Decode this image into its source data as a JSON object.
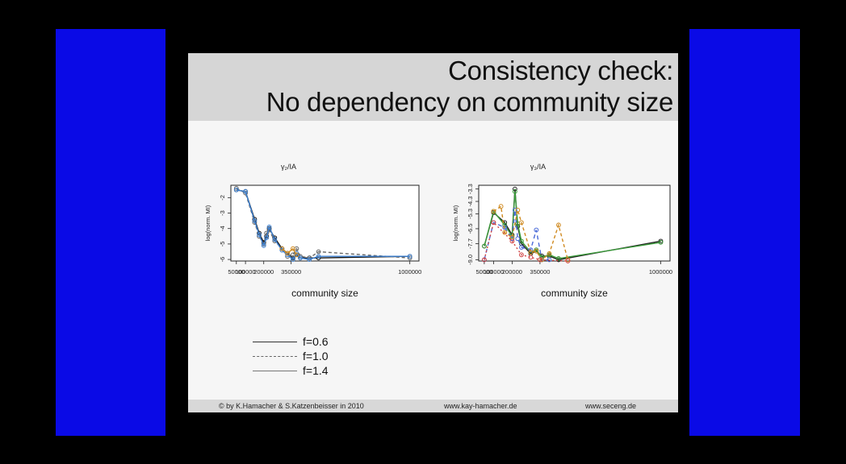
{
  "slide": {
    "title_line1": "Consistency check:",
    "title_line2": "No dependency on community size",
    "footer_left": "© by K.Hamacher & S.Katzenbeisser in 2010",
    "footer_mid": "www.kay-hamacher.de",
    "footer_right": "www.seceng.de"
  },
  "colors": {
    "frame_blue": "#0a0ae6",
    "background": "#000000",
    "slide": "#f6f6f6",
    "title_band": "#d6d6d6"
  },
  "legend": [
    {
      "label": "f=0.6",
      "style": "solid"
    },
    {
      "label": "f=1.0",
      "style": "dashed"
    },
    {
      "label": "f=1.4",
      "style": "solid"
    }
  ],
  "chart_data": [
    {
      "type": "line",
      "title": "γ₂/IA",
      "xlabel": "community size",
      "ylabel": "log(norm. MI)",
      "xlim": [
        20000,
        1050000
      ],
      "ylim": [
        -6.1,
        -1.2
      ],
      "xticks": [
        50000,
        100000,
        200000,
        350000,
        1000000
      ],
      "xtick_labels": [
        "50000",
        "100000",
        "200000",
        "350000",
        "1000000"
      ],
      "yticks": [
        -2,
        -3,
        -4,
        -5,
        -6
      ],
      "ytick_labels": [
        "-2",
        "-3",
        "-4",
        "-5",
        "-6"
      ],
      "series": [
        {
          "color": "#111111",
          "dash": "",
          "x": [
            50000,
            100000,
            150000,
            175000,
            200000,
            215000,
            230000,
            260000,
            300000,
            330000,
            360000,
            380000,
            400000,
            450000,
            500000,
            1000000
          ],
          "y": [
            -1.5,
            -1.6,
            -3.4,
            -4.3,
            -4.9,
            -4.5,
            -4.0,
            -4.6,
            -5.3,
            -5.6,
            -5.9,
            -5.7,
            -5.9,
            -5.9,
            -5.9,
            -5.8
          ]
        },
        {
          "color": "#666666",
          "dash": "4,3",
          "x": [
            50000,
            100000,
            150000,
            175000,
            200000,
            215000,
            230000,
            260000,
            300000,
            330000,
            360000,
            380000,
            400000,
            450000,
            500000,
            1000000
          ],
          "y": [
            -1.4,
            -1.7,
            -3.6,
            -4.5,
            -5.0,
            -4.3,
            -4.1,
            -4.8,
            -5.3,
            -5.8,
            -5.7,
            -5.3,
            -5.8,
            -5.9,
            -5.5,
            -5.9
          ]
        },
        {
          "color": "#3b7fd0",
          "dash": "",
          "x": [
            50000,
            100000,
            150000,
            175000,
            200000,
            215000,
            230000,
            260000,
            300000,
            330000,
            360000,
            380000,
            400000,
            450000,
            500000,
            1000000
          ],
          "y": [
            -1.5,
            -1.6,
            -3.5,
            -4.4,
            -5.1,
            -4.6,
            -3.9,
            -4.7,
            -5.4,
            -5.7,
            -6.0,
            -5.6,
            -5.9,
            -6.0,
            -5.8,
            -5.8
          ]
        },
        {
          "color": "#d08a20",
          "dash": "",
          "x": [
            300000,
            330000,
            360000,
            380000
          ],
          "y": [
            -5.3,
            -5.6,
            -5.3,
            -5.7
          ]
        }
      ]
    },
    {
      "type": "line",
      "title": "γ₃/IA",
      "xlabel": "community size",
      "ylabel": "log(norm. MI)",
      "xlim": [
        20000,
        1050000
      ],
      "ylim": [
        -9.1,
        -3.0
      ],
      "xticks": [
        50000,
        100000,
        200000,
        350000,
        1000000
      ],
      "xtick_labels": [
        "50000",
        "100000",
        "200000",
        "350000",
        "1000000"
      ],
      "yticks": [
        -9,
        -7.7,
        -6.5,
        -5.3,
        -4.3,
        -3.3
      ],
      "ytick_labels": [
        "-9.0",
        "-7.7",
        "-6.5",
        "-5.3",
        "-4.3",
        "-3.3"
      ],
      "series": [
        {
          "color": "#222222",
          "dash": "",
          "x": [
            50000,
            100000,
            160000,
            200000,
            215000,
            230000,
            250000,
            300000,
            330000,
            360000,
            400000,
            450000,
            1000000
          ],
          "y": [
            -7.9,
            -5.2,
            -6.0,
            -7.0,
            -3.3,
            -6.3,
            -7.7,
            -8.5,
            -8.3,
            -8.7,
            -8.7,
            -9.0,
            -7.5
          ]
        },
        {
          "color": "#3a9a3a",
          "dash": "",
          "x": [
            50000,
            100000,
            160000,
            200000,
            215000,
            230000,
            250000,
            300000,
            330000,
            360000,
            400000,
            450000,
            1000000
          ],
          "y": [
            -7.9,
            -5.1,
            -6.2,
            -7.1,
            -3.5,
            -6.1,
            -7.5,
            -8.4,
            -8.2,
            -8.8,
            -8.6,
            -8.9,
            -7.6
          ]
        },
        {
          "color": "#4a6ad8",
          "dash": "5,4",
          "x": [
            50000,
            100000,
            160000,
            200000,
            215000,
            230000,
            250000,
            300000,
            330000,
            360000,
            400000
          ],
          "y": [
            -9.0,
            -6.0,
            -6.4,
            -7.3,
            -5.0,
            -7.3,
            -8.0,
            -8.2,
            -6.6,
            -9.0,
            -9.0
          ]
        },
        {
          "color": "#d08a20",
          "dash": "4,3",
          "x": [
            100000,
            140000,
            160000,
            200000,
            230000,
            250000,
            300000,
            330000,
            360000,
            400000,
            450000,
            500000
          ],
          "y": [
            -5.1,
            -4.7,
            -6.8,
            -7.2,
            -5.0,
            -6.0,
            -8.4,
            -8.3,
            -9.0,
            -8.5,
            -6.2,
            -9.0
          ]
        },
        {
          "color": "#d04040",
          "dash": "2,3",
          "x": [
            50000,
            100000,
            200000,
            250000,
            300000,
            350000,
            500000
          ],
          "y": [
            -9.0,
            -6.0,
            -7.5,
            -8.6,
            -8.8,
            -9.0,
            -9.1
          ]
        }
      ]
    }
  ]
}
